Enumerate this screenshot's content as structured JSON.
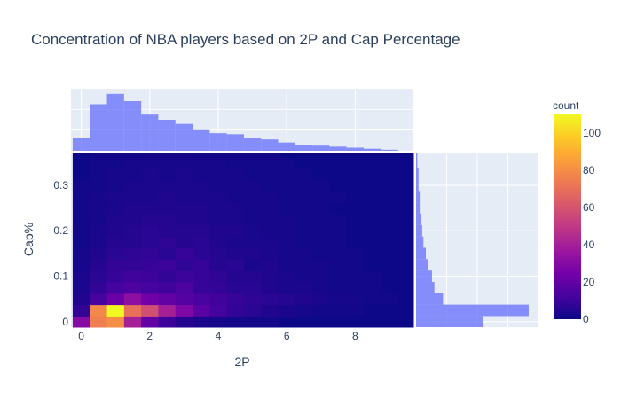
{
  "chart_data": {
    "type": "heatmap",
    "title": "Concentration of NBA players based on 2P and Cap Percentage",
    "xlabel": "2P",
    "ylabel": "Cap%",
    "x_range": [
      -0.3,
      9.7
    ],
    "y_range": [
      -0.012,
      0.372
    ],
    "x_ticks": [
      {
        "value": 0,
        "label": "0"
      },
      {
        "value": 2,
        "label": "2"
      },
      {
        "value": 4,
        "label": "4"
      },
      {
        "value": 6,
        "label": "6"
      },
      {
        "value": 8,
        "label": "8"
      }
    ],
    "y_ticks": [
      {
        "value": 0,
        "label": "0"
      },
      {
        "value": 0.1,
        "label": "0.1"
      },
      {
        "value": 0.2,
        "label": "0.2"
      },
      {
        "value": 0.3,
        "label": "0.3"
      }
    ],
    "x_bin_start": -0.25,
    "x_bin_size": 0.5,
    "y_bin_start": -0.0125,
    "y_bin_size": 0.025,
    "z": [
      [
        30,
        75,
        80,
        40,
        20,
        10,
        5,
        3,
        2,
        1,
        1,
        1,
        0,
        0,
        0,
        0,
        0,
        0,
        0,
        0
      ],
      [
        8,
        78,
        110,
        70,
        58,
        40,
        28,
        18,
        12,
        8,
        6,
        4,
        3,
        2,
        1,
        1,
        1,
        0,
        0,
        0
      ],
      [
        4,
        12,
        22,
        32,
        24,
        20,
        16,
        13,
        11,
        9,
        7,
        6,
        5,
        4,
        3,
        2,
        2,
        1,
        1,
        0
      ],
      [
        3,
        8,
        12,
        14,
        12,
        11,
        14,
        9,
        8,
        6,
        6,
        4,
        3,
        3,
        2,
        1,
        1,
        1,
        0,
        0
      ],
      [
        3,
        6,
        9,
        11,
        10,
        8,
        10,
        9,
        7,
        5,
        5,
        4,
        3,
        2,
        2,
        1,
        1,
        1,
        0,
        0
      ],
      [
        2,
        5,
        8,
        8,
        9,
        10,
        7,
        9,
        5,
        6,
        3,
        4,
        2,
        2,
        2,
        1,
        1,
        0,
        0,
        0
      ],
      [
        2,
        4,
        6,
        7,
        8,
        6,
        9,
        6,
        5,
        4,
        4,
        3,
        2,
        2,
        1,
        1,
        1,
        0,
        0,
        0
      ],
      [
        1,
        3,
        5,
        5,
        6,
        7,
        5,
        6,
        4,
        3,
        3,
        3,
        2,
        1,
        1,
        1,
        0,
        0,
        0,
        0
      ],
      [
        1,
        3,
        4,
        5,
        6,
        5,
        5,
        5,
        4,
        4,
        3,
        2,
        2,
        1,
        1,
        1,
        0,
        0,
        0,
        0
      ],
      [
        1,
        2,
        4,
        4,
        5,
        5,
        4,
        4,
        3,
        3,
        2,
        2,
        2,
        1,
        1,
        1,
        0,
        0,
        0,
        0
      ],
      [
        1,
        2,
        3,
        4,
        4,
        4,
        4,
        4,
        3,
        3,
        2,
        2,
        1,
        1,
        1,
        0,
        0,
        0,
        0,
        0
      ],
      [
        1,
        2,
        3,
        3,
        3,
        4,
        3,
        3,
        3,
        2,
        2,
        2,
        1,
        1,
        1,
        1,
        0,
        0,
        0,
        0
      ],
      [
        1,
        1,
        2,
        3,
        3,
        3,
        3,
        3,
        2,
        2,
        2,
        1,
        1,
        1,
        1,
        0,
        0,
        0,
        0,
        0
      ],
      [
        0,
        1,
        2,
        2,
        3,
        2,
        3,
        2,
        2,
        2,
        1,
        1,
        1,
        1,
        0,
        0,
        0,
        0,
        0,
        0
      ],
      [
        0,
        1,
        1,
        2,
        2,
        2,
        2,
        2,
        2,
        1,
        1,
        1,
        1,
        0,
        0,
        0,
        0,
        0,
        0,
        0
      ],
      [
        0,
        1,
        1,
        1,
        2,
        2,
        2,
        1,
        1,
        1,
        1,
        1,
        0,
        0,
        0,
        0,
        0,
        0,
        0,
        0
      ]
    ],
    "marginal_x": [
      12,
      45,
      55,
      48,
      35,
      30,
      26,
      20,
      17,
      16,
      12,
      11,
      8,
      6,
      5,
      4,
      3,
      2,
      1,
      0
    ],
    "marginal_y": [
      55,
      92,
      22,
      15,
      13,
      10,
      8,
      6,
      5,
      4,
      3,
      3,
      2,
      2,
      1,
      1
    ],
    "colorbar": {
      "title": "count",
      "zmin": 0,
      "zmax": 110,
      "ticks": [
        {
          "value": 0,
          "label": "0"
        },
        {
          "value": 20,
          "label": "20"
        },
        {
          "value": 40,
          "label": "40"
        },
        {
          "value": 60,
          "label": "60"
        },
        {
          "value": 80,
          "label": "80"
        },
        {
          "value": 100,
          "label": "100"
        }
      ],
      "colors": [
        "#0d0887",
        "#46039f",
        "#7201a8",
        "#9c179e",
        "#bd3786",
        "#d8576b",
        "#ed7953",
        "#fb9f3a",
        "#fdca26",
        "#f0f921"
      ]
    },
    "marginal_color": "#636efa",
    "panel_bg": "#e5ecf6",
    "grid": true
  }
}
